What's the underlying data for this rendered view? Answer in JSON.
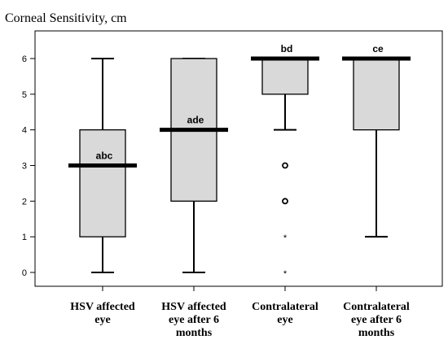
{
  "chart_data": {
    "type": "boxplot",
    "title": "Corneal Sensitivity, cm",
    "xlabel": "",
    "ylabel": "",
    "ylim": [
      -0.3,
      6.6
    ],
    "yticks": [
      0,
      1,
      2,
      3,
      4,
      5,
      6
    ],
    "grid": false,
    "categories": [
      [
        "HSV affected",
        "eye"
      ],
      [
        "HSV affected",
        "eye after 6",
        "months"
      ],
      [
        "Contralateral",
        "eye"
      ],
      [
        "Contralateral",
        "eye after 6",
        "months"
      ]
    ],
    "boxes": [
      {
        "whisker_low": 0,
        "q1": 1,
        "median": 3,
        "q3": 4,
        "whisker_high": 6,
        "annotation": "abc",
        "outliers": [],
        "extremes": []
      },
      {
        "whisker_low": 0,
        "q1": 2,
        "median": 4,
        "q3": 6,
        "whisker_high": 6,
        "annotation": "ade",
        "outliers": [],
        "extremes": []
      },
      {
        "whisker_low": 4,
        "q1": 5,
        "median": 6,
        "q3": 6,
        "whisker_high": 6,
        "annotation": "bd",
        "outliers": [
          3,
          2
        ],
        "extremes": [
          1,
          0
        ]
      },
      {
        "whisker_low": 1,
        "q1": 4,
        "median": 6,
        "q3": 6,
        "whisker_high": 6,
        "annotation": "ce",
        "outliers": [],
        "extremes": []
      }
    ],
    "colors": {
      "box_fill": "#d9d9d9",
      "stroke": "#000000"
    }
  }
}
